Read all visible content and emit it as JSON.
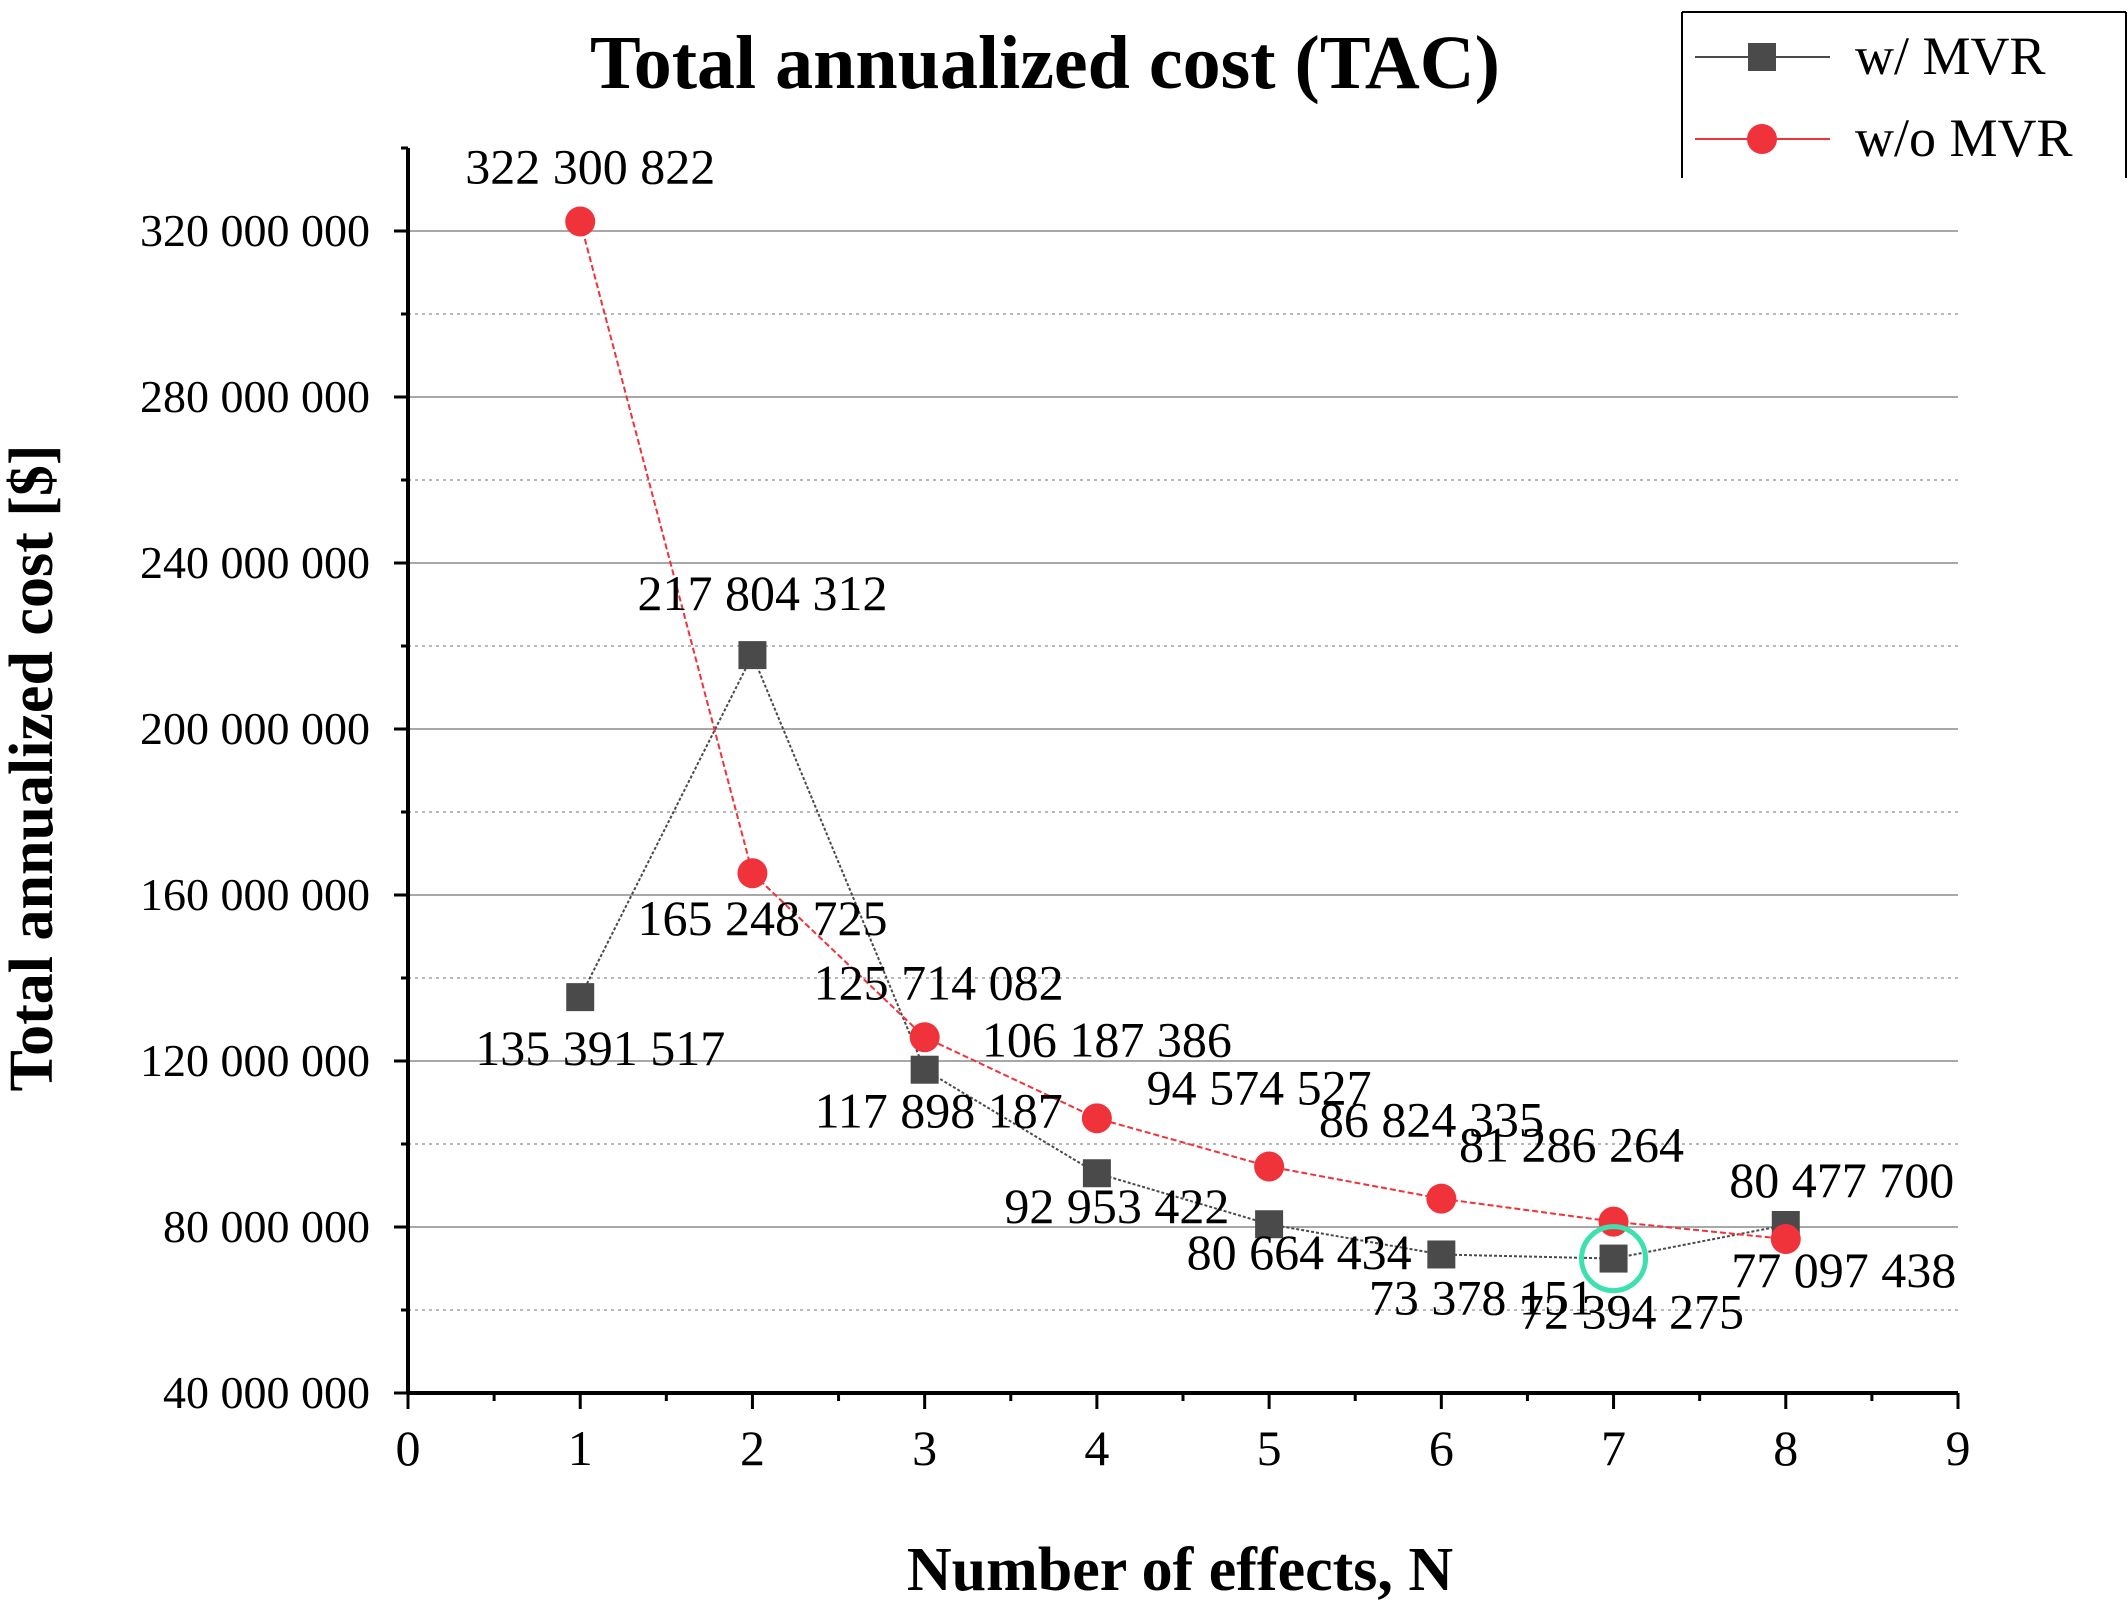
{
  "chart_data": {
    "type": "line",
    "title": "Total annualized cost (TAC)",
    "xlabel": "Number of effects, N",
    "ylabel": "Total annualized cost [$]",
    "xlim": [
      0,
      9
    ],
    "ylim": [
      40000000,
      340000000
    ],
    "x_ticks": [
      "0",
      "1",
      "2",
      "3",
      "4",
      "5",
      "6",
      "7",
      "8",
      "9"
    ],
    "y_ticks": [
      {
        "value": 40000000,
        "label": "40 000 000"
      },
      {
        "value": 80000000,
        "label": "80 000 000"
      },
      {
        "value": 120000000,
        "label": "120 000 000"
      },
      {
        "value": 160000000,
        "label": "160 000 000"
      },
      {
        "value": 200000000,
        "label": "200 000 000"
      },
      {
        "value": 240000000,
        "label": "240 000 000"
      },
      {
        "value": 280000000,
        "label": "280 000 000"
      },
      {
        "value": 320000000,
        "label": "320 000 000"
      }
    ],
    "grid": true,
    "legend_position": "top-right",
    "x": [
      1,
      2,
      3,
      4,
      5,
      6,
      7,
      8
    ],
    "series": [
      {
        "name": "w/ MVR",
        "color": "#4a4a4a",
        "marker": "square",
        "values": [
          135391517,
          217804312,
          117898187,
          92953422,
          80664434,
          73378151,
          72394275,
          80477700
        ],
        "labels": [
          "135 391 517",
          "217 804 312",
          "117 898 187",
          "92 953 422",
          "80 664 434",
          "73 378 151",
          "72 394 275",
          "80 477 700"
        ]
      },
      {
        "name": "w/o MVR",
        "color": "#f0323a",
        "marker": "circle",
        "values": [
          322300822,
          165248725,
          125714082,
          106187386,
          94574527,
          86824335,
          81286264,
          77097438
        ],
        "labels": [
          "322 300 822",
          "165 248 725",
          "125 714 082",
          "106 187 386",
          "94 574 527",
          "86 824 335",
          "81 286 264",
          "77 097 438"
        ]
      }
    ],
    "highlight": {
      "x": 7,
      "y": 72394275,
      "color": "#3ee0b0"
    }
  }
}
